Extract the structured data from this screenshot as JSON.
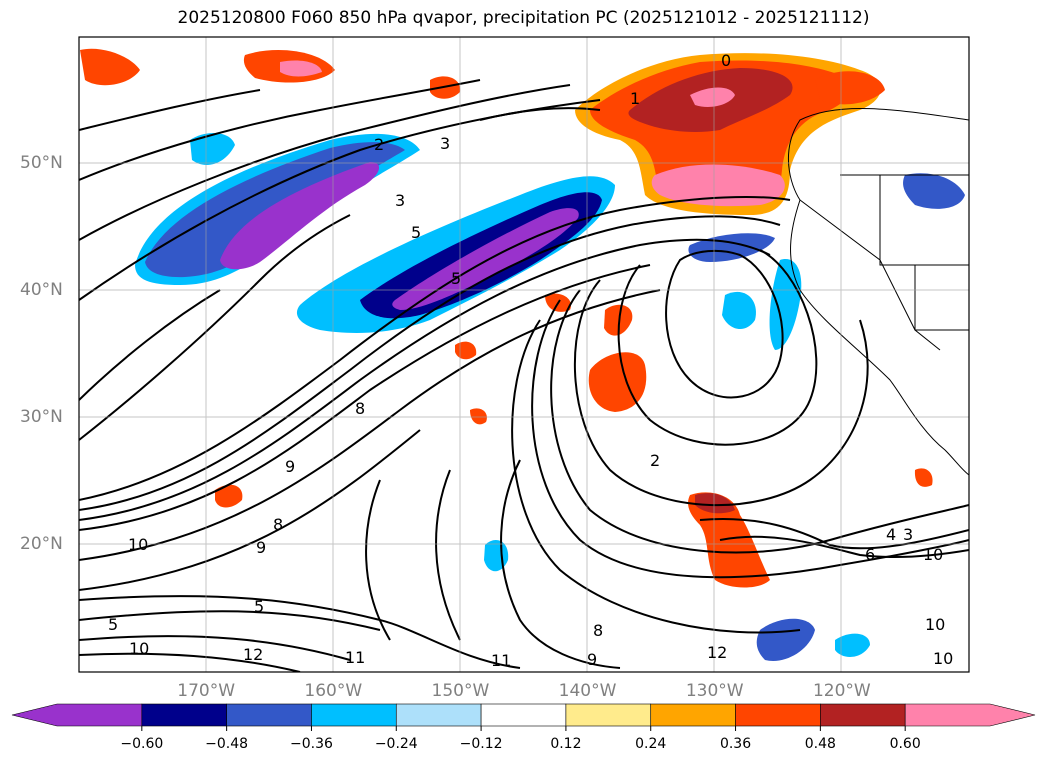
{
  "title": "2025120800 F060 850 hPa qvapor, precipitation PC (2025121012 - 2025121112)",
  "map": {
    "lat_labels": [
      {
        "text": "50°N",
        "lat": 50
      },
      {
        "text": "40°N",
        "lat": 40
      },
      {
        "text": "30°N",
        "lat": 30
      },
      {
        "text": "20°N",
        "lat": 20
      }
    ],
    "lon_labels": [
      {
        "text": "170°W",
        "lon": -170
      },
      {
        "text": "160°W",
        "lon": -160
      },
      {
        "text": "150°W",
        "lon": -150
      },
      {
        "text": "140°W",
        "lon": -140
      },
      {
        "text": "130°W",
        "lon": -130
      },
      {
        "text": "120°W",
        "lon": -120
      }
    ],
    "contour_labels": [
      "0",
      "1",
      "2",
      "3",
      "3",
      "5",
      "5",
      "8",
      "9",
      "9",
      "10",
      "10",
      "11",
      "12",
      "11",
      "12",
      "9",
      "8",
      "2",
      "4",
      "3",
      "6",
      "10",
      "5",
      "5",
      "10",
      "8",
      "10"
    ],
    "colors": {
      "-0.60": "#9932CC",
      "-0.48": "#00008B",
      "-0.36": "#3358C8",
      "-0.24": "#00BFFF",
      "-0.12": "#ADE0FA",
      "0": "#FFFFFF",
      "0.12": "#FFEB8C",
      "0.24": "#FFA500",
      "0.36": "#FF4500",
      "0.48": "#B22222",
      "0.60": "#FF82AB"
    }
  },
  "colorbar": {
    "ticks": [
      "−0.60",
      "−0.48",
      "−0.36",
      "−0.24",
      "−0.12",
      "0.12",
      "0.24",
      "0.36",
      "0.48",
      "0.60"
    ],
    "colors": [
      "#9932CC",
      "#00008B",
      "#3358C8",
      "#00BFFF",
      "#ADE0FA",
      "#FFFFFF",
      "#FFEB8C",
      "#FFA500",
      "#FF4500",
      "#B22222",
      "#FF82AB"
    ]
  }
}
